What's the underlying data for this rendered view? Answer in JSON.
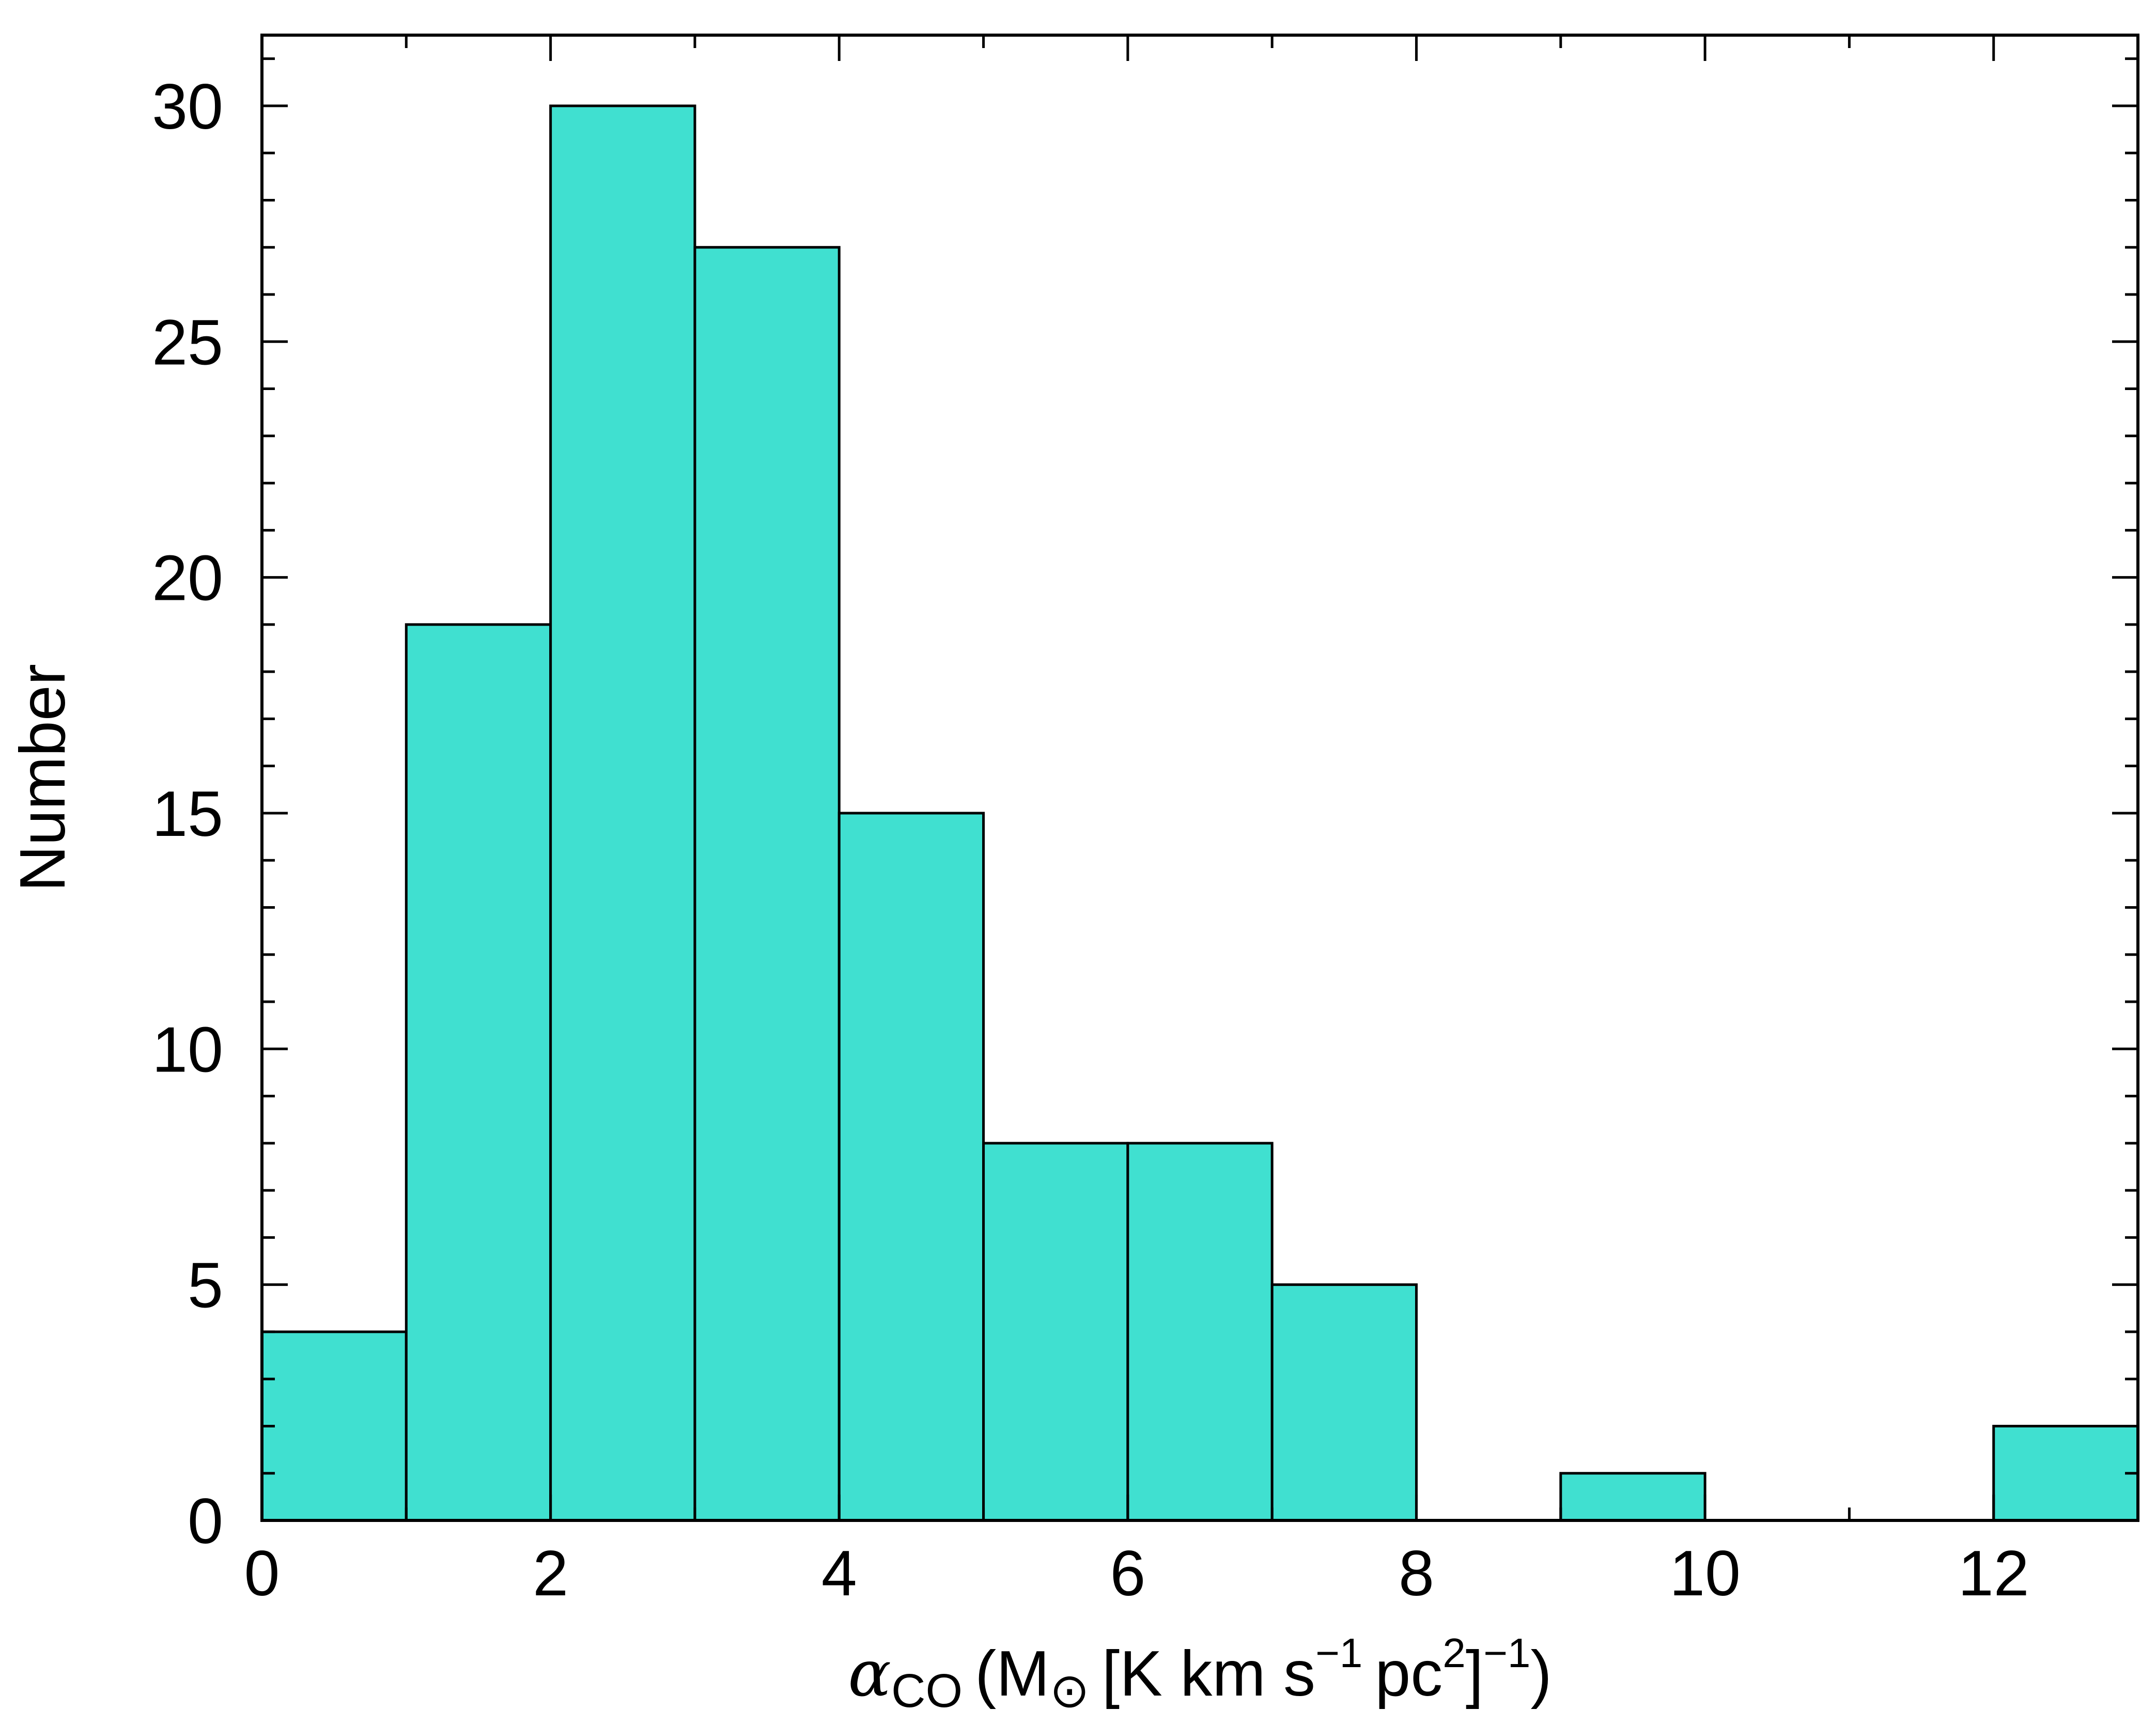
{
  "chart_data": {
    "type": "bar",
    "bins": [
      {
        "x0": 0,
        "x1": 1,
        "count": 4
      },
      {
        "x0": 1,
        "x1": 2,
        "count": 19
      },
      {
        "x0": 2,
        "x1": 3,
        "count": 30
      },
      {
        "x0": 3,
        "x1": 4,
        "count": 27
      },
      {
        "x0": 4,
        "x1": 5,
        "count": 15
      },
      {
        "x0": 5,
        "x1": 6,
        "count": 8
      },
      {
        "x0": 6,
        "x1": 7,
        "count": 8
      },
      {
        "x0": 7,
        "x1": 8,
        "count": 5
      },
      {
        "x0": 8,
        "x1": 9,
        "count": 0
      },
      {
        "x0": 9,
        "x1": 10,
        "count": 1
      },
      {
        "x0": 10,
        "x1": 11,
        "count": 0
      },
      {
        "x0": 11,
        "x1": 12,
        "count": 0
      },
      {
        "x0": 12,
        "x1": 13,
        "count": 2
      }
    ],
    "xlim": [
      0,
      13
    ],
    "ylim": [
      0,
      31.5
    ],
    "xticks": [
      "0",
      "2",
      "4",
      "6",
      "8",
      "10",
      "12"
    ],
    "yticks": [
      "0",
      "5",
      "10",
      "15",
      "20",
      "25",
      "30"
    ],
    "x_minor_step": 1,
    "y_minor_step": 1,
    "xlabel": {
      "symbol": "α",
      "symbol_sub": "CO",
      "open": "(M",
      "sun_sub": "⊙",
      "bracket_open": "[K km s",
      "s_exp": "−1",
      "pc": "pc",
      "pc_exp": "2",
      "bracket_close": "]",
      "outer_exp": "−1",
      "close": ")"
    },
    "ylabel": "Number",
    "bar_color": "#40E0D0",
    "edge_color": "#000000",
    "grid": false
  }
}
